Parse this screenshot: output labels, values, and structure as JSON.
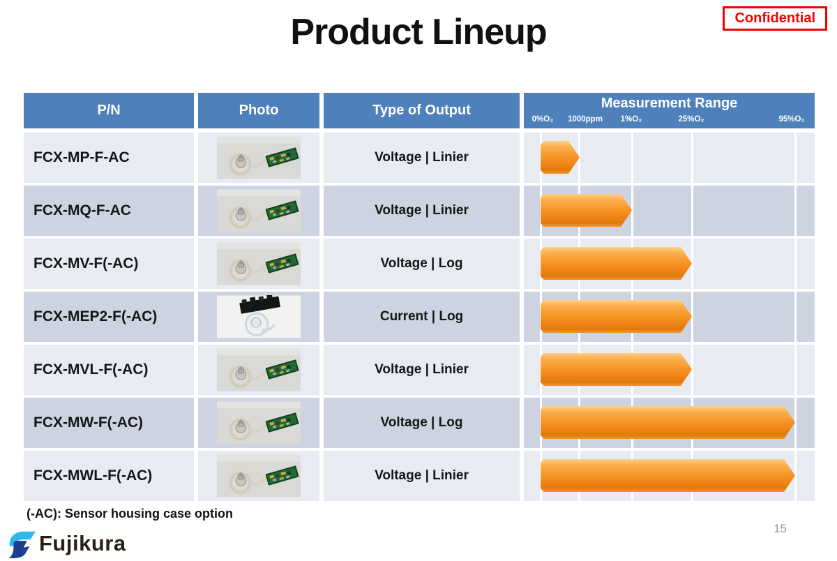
{
  "slide": {
    "title": "Product Lineup",
    "confidential": "Confidential",
    "footnote": "(-AC): Sensor housing case option",
    "page_number": "15",
    "logo": {
      "text": "Fujikura",
      "icon": "fujikura-f-mark"
    }
  },
  "table": {
    "columns": {
      "pn": "P/N",
      "photo": "Photo",
      "output": "Type of Output",
      "range": "Measurement Range"
    },
    "range_ticks": [
      {
        "label": "0%O₂",
        "key": "0%O2"
      },
      {
        "label": "1000ppm",
        "key": "1000ppm"
      },
      {
        "label": "1%O₂",
        "key": "1%O2"
      },
      {
        "label": "25%O₂",
        "key": "25%O2"
      },
      {
        "label": "95%O₂",
        "key": "95%O2"
      }
    ],
    "rows": [
      {
        "pn": "FCX-MP-F-AC",
        "photo": "oxygen-sensor-with-cable-and-green-pcb",
        "output": "Voltage | Linier",
        "range_start": "0%O2",
        "range_end": "1000ppm"
      },
      {
        "pn": "FCX-MQ-F-AC",
        "photo": "oxygen-sensor-with-cable-and-green-pcb",
        "output": "Voltage | Linier",
        "range_start": "0%O2",
        "range_end": "1%O2"
      },
      {
        "pn": "FCX-MV-F(-AC)",
        "photo": "oxygen-sensor-with-coil-cable-and-green-pcb",
        "output": "Voltage | Log",
        "range_start": "0%O2",
        "range_end": "25%O2"
      },
      {
        "pn": "FCX-MEP2-F(-AC)",
        "photo": "clear-sensor-disc-with-black-pcb",
        "output": "Current | Log",
        "range_start": "0%O2",
        "range_end": "25%O2"
      },
      {
        "pn": "FCX-MVL-F(-AC)",
        "photo": "oxygen-sensor-with-coil-cable-and-green-pcb",
        "output": "Voltage | Linier",
        "range_start": "0%O2",
        "range_end": "25%O2"
      },
      {
        "pn": "FCX-MW-F(-AC)",
        "photo": "oxygen-sensor-with-coil-cable-and-green-pcb",
        "output": "Voltage | Log",
        "range_start": "0%O2",
        "range_end": "95%O2"
      },
      {
        "pn": "FCX-MWL-F(-AC)",
        "photo": "oxygen-sensor-with-coil-cable-and-green-pcb",
        "output": "Voltage | Linier",
        "range_start": "0%O2",
        "range_end": "95%O2"
      }
    ]
  },
  "colors": {
    "header_blue": "#4E80BC",
    "row_dark": "#CDD3E1",
    "row_light": "#E9EBF2",
    "arrow_orange": "#F79728",
    "confidential_red": "#F40000",
    "logo_cyan": "#2FB8EA",
    "logo_navy": "#1C3E8E",
    "page_number_gray": "#9A9A9A"
  }
}
